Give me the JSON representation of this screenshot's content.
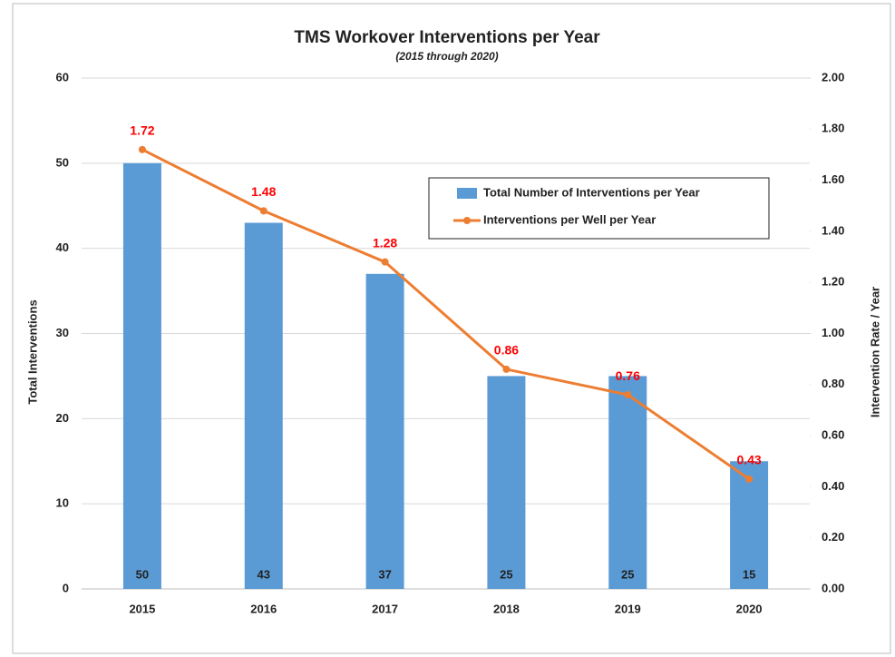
{
  "chart_data": {
    "type": "bar",
    "title": "TMS Workover Interventions per Year",
    "subtitle": "(2015 through 2020)",
    "y_label": "Total Interventions",
    "y2_label": "Intervention Rate / Year",
    "categories": [
      "2015",
      "2016",
      "2017",
      "2018",
      "2019",
      "2020"
    ],
    "series": [
      {
        "name": "Total Number of Interventions per Year",
        "type": "bar",
        "color": "#5b9bd5",
        "values": [
          50,
          43,
          37,
          25,
          25,
          15
        ]
      },
      {
        "name": "Interventions per Well per Year",
        "type": "line",
        "axis": "y2",
        "color": "#ed7d31",
        "label_color": "#ff0000",
        "values": [
          1.72,
          1.48,
          1.28,
          0.86,
          0.76,
          0.43
        ]
      }
    ],
    "ylim": [
      0,
      60
    ],
    "yticks": [
      0,
      10,
      20,
      30,
      40,
      50,
      60
    ],
    "y2lim": [
      0,
      2
    ],
    "y2ticks": [
      {
        "value": 0,
        "label": "0.00"
      },
      {
        "value": 0.2,
        "label": "0.20"
      },
      {
        "value": 0.4,
        "label": "0.40"
      },
      {
        "value": 0.6,
        "label": "0.60"
      },
      {
        "value": 0.8,
        "label": "0.80"
      },
      {
        "value": 1,
        "label": "1.00"
      },
      {
        "value": 1.2,
        "label": "1.20"
      },
      {
        "value": 1.4,
        "label": "1.40"
      },
      {
        "value": 1.6,
        "label": "1.60"
      },
      {
        "value": 1.8,
        "label": "1.80"
      },
      {
        "value": 2,
        "label": "2.00"
      }
    ],
    "grid": true,
    "legend": "upper right"
  }
}
